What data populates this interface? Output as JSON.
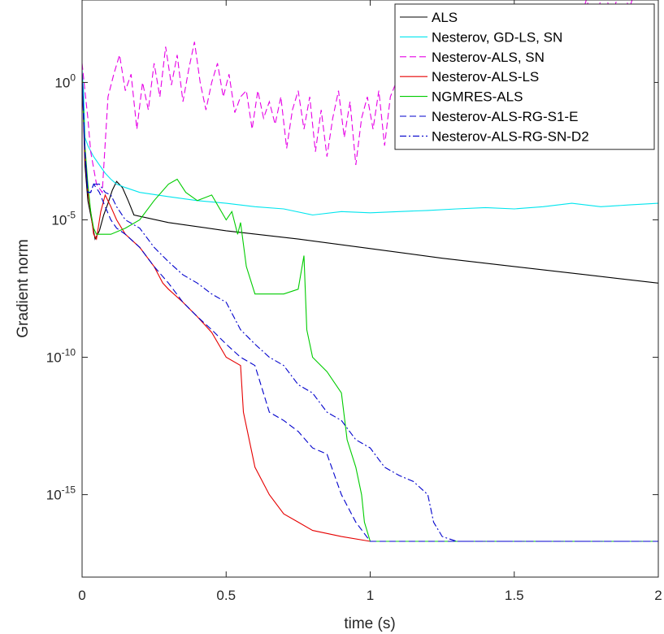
{
  "chart_data": {
    "type": "line",
    "xlabel": "time (s)",
    "ylabel": "Gradient norm",
    "xlim": [
      0,
      2
    ],
    "ylim": [
      1e-18,
      1000.0
    ],
    "yscale": "log",
    "grid": false,
    "legend_position": "top-right",
    "x_ticks": [
      {
        "value": 0,
        "label": "0"
      },
      {
        "value": 0.5,
        "label": "0.5"
      },
      {
        "value": 1,
        "label": "1"
      },
      {
        "value": 1.5,
        "label": "1.5"
      },
      {
        "value": 2,
        "label": "2"
      }
    ],
    "y_ticks": [
      {
        "value": 1e-15,
        "base": "10",
        "exp": "-15"
      },
      {
        "value": 1e-10,
        "base": "10",
        "exp": "-10"
      },
      {
        "value": 1e-05,
        "base": "10",
        "exp": "-5"
      },
      {
        "value": 1,
        "base": "10",
        "exp": "0"
      }
    ],
    "series": [
      {
        "name": "ALS",
        "color": "#000000",
        "dash": "solid",
        "x": [
          0,
          0.01,
          0.02,
          0.03,
          0.045,
          0.06,
          0.075,
          0.09,
          0.105,
          0.12,
          0.14,
          0.16,
          0.18,
          0.3,
          0.5,
          0.75,
          1.0,
          1.25,
          1.5,
          1.75,
          2.0
        ],
        "y": [
          2,
          0.001,
          5e-05,
          1.5e-05,
          2e-06,
          4e-06,
          1.5e-05,
          4e-05,
          0.00012,
          0.00025,
          0.00015,
          5e-05,
          1.5e-05,
          8e-06,
          4e-06,
          2e-06,
          9e-07,
          4e-07,
          2e-07,
          1e-07,
          5e-08
        ]
      },
      {
        "name": "Nesterov, GD-LS, SN",
        "color": "#00e5ee",
        "dash": "solid",
        "x": [
          0,
          0.005,
          0.01,
          0.02,
          0.04,
          0.06,
          0.08,
          0.1,
          0.12,
          0.15,
          0.2,
          0.3,
          0.4,
          0.5,
          0.6,
          0.7,
          0.8,
          0.9,
          1.0,
          1.1,
          1.2,
          1.3,
          1.4,
          1.5,
          1.6,
          1.7,
          1.8,
          1.9,
          2.0
        ],
        "y": [
          3,
          0.5,
          0.01,
          0.005,
          0.002,
          0.001,
          0.0005,
          0.0003,
          0.0002,
          0.00015,
          0.0001,
          7e-05,
          5e-05,
          4e-05,
          3e-05,
          2.5e-05,
          1.5e-05,
          2e-05,
          1.8e-05,
          2e-05,
          2.2e-05,
          2.5e-05,
          2.8e-05,
          2.5e-05,
          3e-05,
          4e-05,
          3e-05,
          3.5e-05,
          4e-05
        ]
      },
      {
        "name": "Nesterov-ALS, SN",
        "color": "#e600e6",
        "dash": "dashed",
        "x": [
          0,
          0.01,
          0.02,
          0.03,
          0.05,
          0.07,
          0.09,
          0.11,
          0.13,
          0.15,
          0.17,
          0.19,
          0.21,
          0.23,
          0.25,
          0.27,
          0.29,
          0.31,
          0.33,
          0.35,
          0.37,
          0.39,
          0.41,
          0.43,
          0.45,
          0.47,
          0.49,
          0.51,
          0.53,
          0.55,
          0.57,
          0.59,
          0.61,
          0.63,
          0.65,
          0.67,
          0.69,
          0.71,
          0.73,
          0.75,
          0.77,
          0.79,
          0.81,
          0.83,
          0.85,
          0.87,
          0.89,
          0.91,
          0.93,
          0.95,
          0.97,
          0.99,
          1.01,
          1.03,
          1.05,
          1.07,
          1.09,
          1.12,
          1.15,
          1.18,
          1.21,
          1.24,
          1.27,
          1.3,
          1.33,
          1.36,
          1.39,
          1.42,
          1.45,
          1.48,
          1.51,
          1.54,
          1.57,
          1.6,
          1.63,
          1.66,
          1.69,
          1.72,
          1.75,
          1.78,
          1.81,
          1.84,
          1.87,
          1.9,
          1.93,
          1.96,
          2.0
        ],
        "y": [
          5,
          0.5,
          0.05,
          0.003,
          0.0002,
          0.0001,
          0.3,
          2,
          10,
          0.5,
          2,
          0.02,
          1,
          0.1,
          5,
          0.3,
          20,
          0.8,
          10,
          0.2,
          3,
          30,
          1,
          0.1,
          1,
          5,
          0.3,
          2,
          0.08,
          0.3,
          0.5,
          0.02,
          0.5,
          0.05,
          0.2,
          0.03,
          0.3,
          0.004,
          0.1,
          0.5,
          0.02,
          0.3,
          0.003,
          0.1,
          0.002,
          0.05,
          0.5,
          0.01,
          0.2,
          0.001,
          0.05,
          0.3,
          0.02,
          0.5,
          0.005,
          0.3,
          1,
          0.05,
          2,
          0.1,
          5,
          0.3,
          10,
          1,
          20,
          2,
          50,
          3,
          100,
          5,
          200,
          10,
          100,
          30,
          300,
          50,
          500,
          100,
          1000,
          200,
          2000,
          300,
          3000,
          500,
          5000,
          1000,
          10000
        ]
      },
      {
        "name": "Nesterov-ALS-LS",
        "color": "#e60000",
        "dash": "solid",
        "x": [
          0,
          0.01,
          0.02,
          0.03,
          0.04,
          0.05,
          0.065,
          0.08,
          0.1,
          0.12,
          0.15,
          0.2,
          0.25,
          0.28,
          0.3,
          0.35,
          0.4,
          0.45,
          0.5,
          0.55,
          0.56,
          0.6,
          0.65,
          0.7,
          0.75,
          0.8,
          0.9,
          1.0,
          1.1,
          1.2,
          1.3,
          1.4,
          1.5,
          1.6,
          1.7,
          1.8,
          1.9,
          2.0
        ],
        "y": [
          2,
          0.002,
          0.0001,
          2e-05,
          3e-06,
          2e-06,
          2e-05,
          8e-05,
          3e-05,
          1e-05,
          3e-06,
          1e-06,
          2e-07,
          5e-08,
          3e-08,
          1e-08,
          3e-09,
          8e-10,
          1e-10,
          5e-11,
          1e-12,
          1e-14,
          1e-15,
          2e-16,
          1e-16,
          5e-17,
          3e-17,
          2e-17,
          2e-17,
          2e-17,
          2e-17,
          2e-17,
          2e-17,
          2e-17,
          2e-17,
          2e-17,
          2e-17,
          2e-17
        ]
      },
      {
        "name": "NGMRES-ALS",
        "color": "#00cc00",
        "dash": "solid",
        "x": [
          0,
          0.01,
          0.02,
          0.03,
          0.04,
          0.05,
          0.07,
          0.1,
          0.15,
          0.2,
          0.25,
          0.3,
          0.33,
          0.36,
          0.4,
          0.45,
          0.5,
          0.52,
          0.54,
          0.55,
          0.57,
          0.6,
          0.65,
          0.7,
          0.75,
          0.77,
          0.78,
          0.8,
          0.85,
          0.9,
          0.92,
          0.95,
          0.97,
          0.98,
          1.0,
          1.1,
          1.2,
          1.3,
          1.4,
          1.5,
          1.6,
          1.7,
          1.8,
          1.9,
          2.0
        ],
        "y": [
          2,
          0.005,
          0.0002,
          2e-05,
          5e-06,
          3e-06,
          3e-06,
          3e-06,
          5e-06,
          1e-05,
          5e-05,
          0.0002,
          0.0003,
          0.0001,
          5e-05,
          8e-05,
          1e-05,
          2e-05,
          3e-06,
          8e-06,
          2e-07,
          2e-08,
          2e-08,
          2e-08,
          3e-08,
          5e-07,
          1e-09,
          1e-10,
          3e-11,
          5e-12,
          1e-13,
          1e-14,
          1e-15,
          1e-16,
          2e-17,
          2e-17,
          2e-17,
          2e-17,
          2e-17,
          2e-17,
          2e-17,
          2e-17,
          2e-17,
          2e-17,
          2e-17
        ]
      },
      {
        "name": "Nesterov-ALS-RG-S1-E",
        "color": "#0000cc",
        "dash": "dashed",
        "x": [
          0,
          0.01,
          0.02,
          0.03,
          0.04,
          0.06,
          0.08,
          0.1,
          0.12,
          0.15,
          0.2,
          0.25,
          0.3,
          0.35,
          0.4,
          0.45,
          0.5,
          0.55,
          0.6,
          0.65,
          0.7,
          0.75,
          0.8,
          0.85,
          0.9,
          0.95,
          1.0,
          1.1,
          1.2,
          1.3,
          1.4,
          1.5,
          1.6,
          1.7,
          1.8,
          1.9,
          2.0
        ],
        "y": [
          2,
          0.003,
          0.0001,
          0.0001,
          0.0002,
          0.0001,
          3e-05,
          1e-05,
          5e-06,
          3e-06,
          1e-06,
          2e-07,
          5e-08,
          1e-08,
          3e-09,
          1e-09,
          3e-10,
          1e-10,
          5e-11,
          1e-12,
          5e-13,
          2e-13,
          5e-14,
          3e-14,
          1e-15,
          1e-16,
          2e-17,
          2e-17,
          2e-17,
          2e-17,
          2e-17,
          2e-17,
          2e-17,
          2e-17,
          2e-17,
          2e-17,
          2e-17
        ]
      },
      {
        "name": "Nesterov-ALS-RG-SN-D2",
        "color": "#0000cc",
        "dash": "dashdot",
        "x": [
          0,
          0.01,
          0.02,
          0.03,
          0.04,
          0.06,
          0.08,
          0.1,
          0.12,
          0.15,
          0.2,
          0.25,
          0.3,
          0.35,
          0.4,
          0.45,
          0.5,
          0.55,
          0.6,
          0.65,
          0.7,
          0.75,
          0.8,
          0.85,
          0.9,
          0.95,
          1.0,
          1.05,
          1.1,
          1.15,
          1.2,
          1.22,
          1.25,
          1.3,
          1.4,
          1.5,
          1.6,
          1.7,
          1.8,
          1.9,
          2.0
        ],
        "y": [
          2,
          0.003,
          0.0001,
          0.0001,
          0.0002,
          0.0002,
          0.0001,
          8e-05,
          3e-05,
          1e-05,
          5e-06,
          1e-06,
          3e-07,
          1e-07,
          5e-08,
          2e-08,
          1e-08,
          1e-09,
          3e-10,
          1e-10,
          5e-11,
          1e-11,
          5e-12,
          1e-12,
          5e-13,
          1e-13,
          5e-14,
          1e-14,
          5e-15,
          3e-15,
          1e-15,
          1e-16,
          3e-17,
          2e-17,
          2e-17,
          2e-17,
          2e-17,
          2e-17,
          2e-17,
          2e-17,
          2e-17
        ]
      }
    ]
  }
}
